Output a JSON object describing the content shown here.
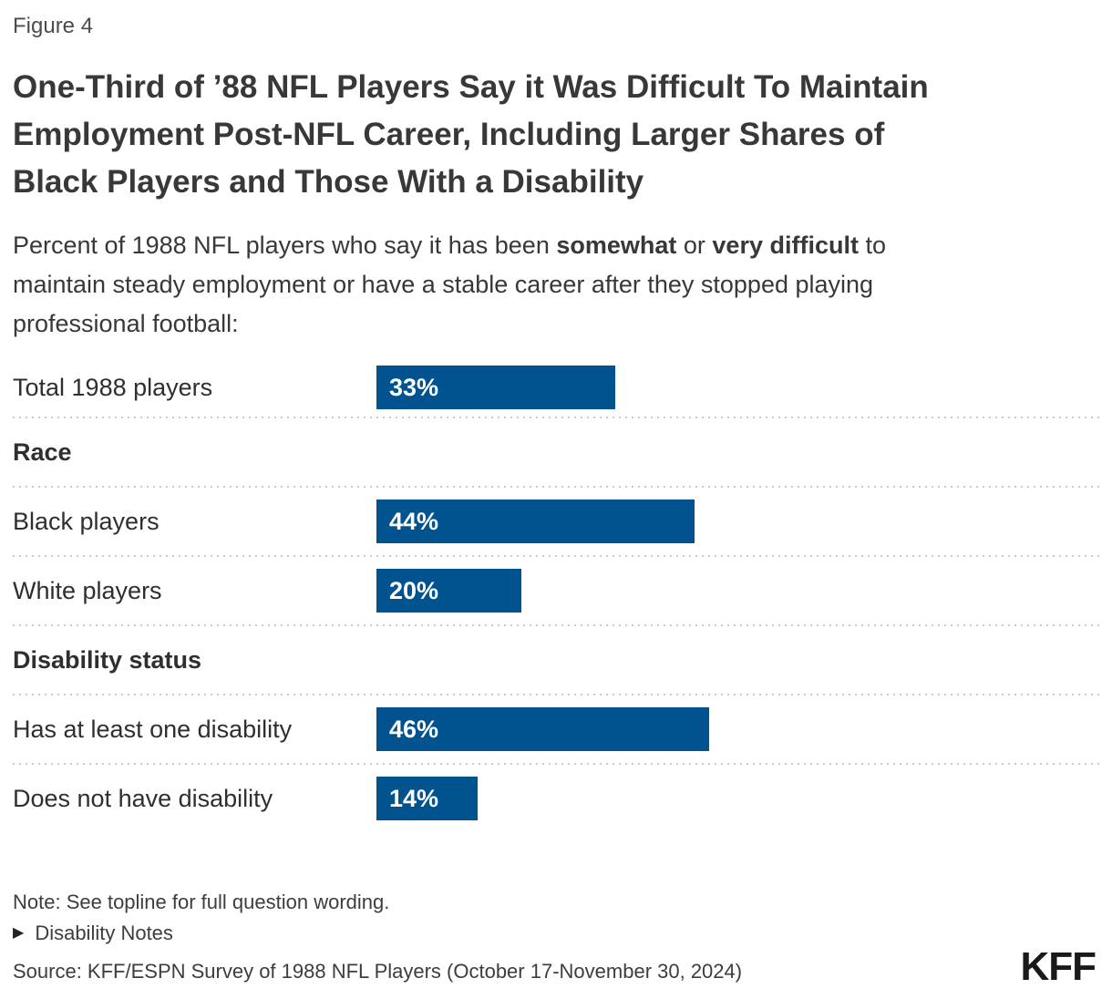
{
  "figure_label": "Figure 4",
  "title_lines": [
    "One-Third of ’88 NFL Players Say it Was Difficult To Maintain",
    "Employment Post-NFL Career, Including Larger Shares of",
    "Black Players and Those With a Disability"
  ],
  "subtitle": {
    "line1_part1": "Percent of 1988 NFL players who say it has been ",
    "line1_bold1": "somewhat",
    "line1_part2": " or ",
    "line1_bold2": "very difficult",
    "line1_part3": " to",
    "line2": "maintain steady employment or have a stable career after they stopped playing",
    "line3": "professional football:"
  },
  "chart_data": {
    "type": "bar",
    "orientation": "horizontal",
    "unit": "%",
    "xlim": [
      0,
      100
    ],
    "bar_color": "#00538E",
    "grid": false,
    "legend": false,
    "rows": [
      {
        "kind": "bar",
        "label": "Total 1988 players",
        "value": 33,
        "value_label": "33%"
      },
      {
        "kind": "section",
        "label": "Race"
      },
      {
        "kind": "bar",
        "label": "Black players",
        "value": 44,
        "value_label": "44%"
      },
      {
        "kind": "bar",
        "label": "White players",
        "value": 20,
        "value_label": "20%"
      },
      {
        "kind": "section",
        "label": "Disability status"
      },
      {
        "kind": "bar",
        "label": "Has at least one disability",
        "value": 46,
        "value_label": "46%"
      },
      {
        "kind": "bar",
        "label": "Does not have disability",
        "value": 14,
        "value_label": "14%"
      }
    ]
  },
  "footer": {
    "note": "Note: See topline for full question wording.",
    "disclosure_icon": "▶",
    "disclosure_label": "Disability Notes",
    "source": "Source: KFF/ESPN Survey of 1988 NFL Players (October 17-November 30, 2024)",
    "logo": "KFF"
  }
}
